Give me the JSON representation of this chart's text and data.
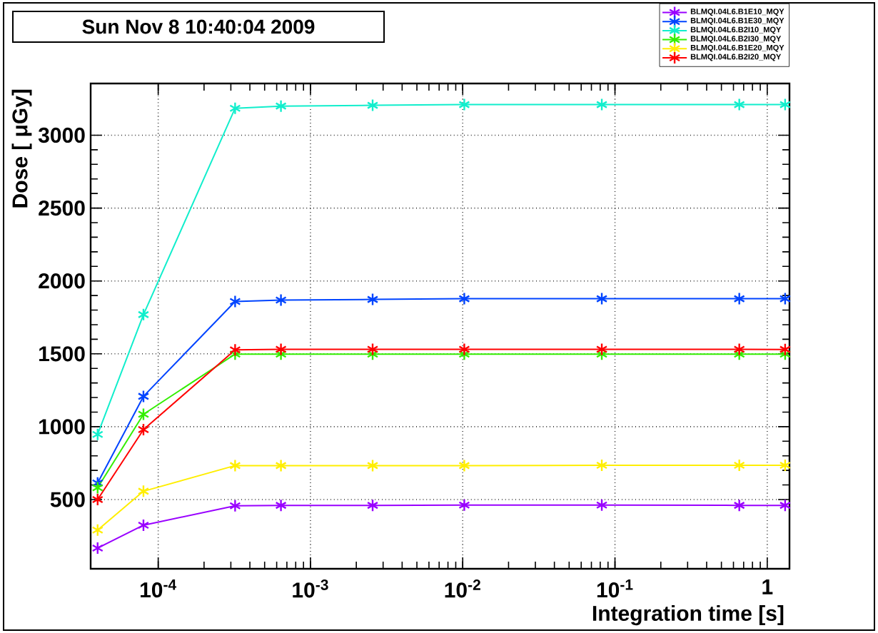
{
  "chart_data": {
    "type": "line",
    "title": "Sun Nov 8 10:40:04 2009",
    "xlabel": "Integration time [s]",
    "ylabel": "Dose [ μGy]",
    "log": "x",
    "grid": true,
    "legend": "top right",
    "marker": "cross",
    "line_style": "solid",
    "xlim": [
      3.6e-05,
      1.4
    ],
    "ylim": [
      25,
      3355
    ],
    "xticks": [
      {
        "value": 0.0001,
        "label": "10$^{-4}$"
      },
      {
        "value": 0.001,
        "label": "10$^{-3}$"
      },
      {
        "value": 0.01,
        "label": "10$^{-2}$"
      },
      {
        "value": 0.1,
        "label": "10$^{-1}$"
      },
      1
    ],
    "yticks": [
      500,
      1000,
      1500,
      2000,
      2500,
      3000
    ],
    "x": [
      4e-05,
      8e-05,
      0.00032,
      0.00064,
      0.00256,
      0.01024,
      0.08192,
      0.65536,
      1.31072
    ],
    "series": [
      {
        "name": "BLMQI.04L6.B1E10_MQY",
        "color": "#9900ff",
        "values": [
          167,
          324,
          457,
          460,
          460,
          462,
          462,
          460,
          460
        ]
      },
      {
        "name": "BLMQI.04L6.B1E30_MQY",
        "color": "#0044ff",
        "values": [
          614,
          1208,
          1859,
          1869,
          1873,
          1878,
          1878,
          1878,
          1878
        ]
      },
      {
        "name": "BLMQI.04L6.B2I10_MQY",
        "color": "#11eecc",
        "values": [
          947,
          1769,
          3185,
          3200,
          3205,
          3210,
          3210,
          3210,
          3210
        ]
      },
      {
        "name": "BLMQI.04L6.B2I30_MQY",
        "color": "#33ee00",
        "values": [
          581,
          1085,
          1498,
          1498,
          1498,
          1498,
          1498,
          1498,
          1498
        ]
      },
      {
        "name": "BLMQI.04L6.B1E20_MQY",
        "color": "#ffee00",
        "values": [
          291,
          557,
          733,
          733,
          733,
          733,
          735,
          735,
          735
        ]
      },
      {
        "name": "BLMQI.04L6.B2I20_MQY",
        "color": "#ff0000",
        "values": [
          500,
          980,
          1527,
          1531,
          1531,
          1531,
          1531,
          1531,
          1530
        ]
      }
    ]
  }
}
